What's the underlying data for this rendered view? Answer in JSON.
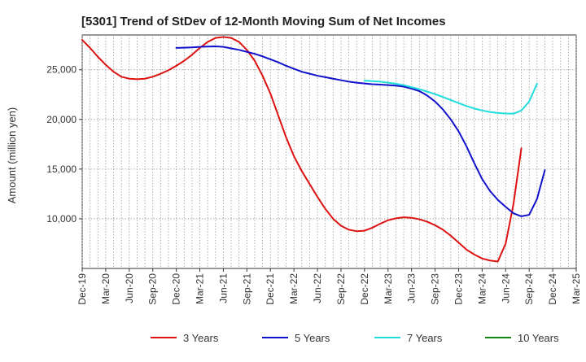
{
  "chart_data": {
    "type": "line",
    "title": "[5301]  Trend of StDev of 12-Month Moving Sum of Net Incomes",
    "xlabel": "",
    "ylabel": "Amount (million yen)",
    "x_tick_labels": [
      "Dec-19",
      "Mar-20",
      "Jun-20",
      "Sep-20",
      "Dec-20",
      "Mar-21",
      "Jun-21",
      "Sep-21",
      "Dec-21",
      "Mar-22",
      "Jun-22",
      "Sep-22",
      "Dec-22",
      "Mar-23",
      "Jun-23",
      "Sep-23",
      "Dec-23",
      "Mar-24",
      "Jun-24",
      "Sep-24",
      "Dec-24",
      "Mar-25"
    ],
    "y_ticks": [
      10000,
      15000,
      20000,
      25000
    ],
    "y_tick_labels": [
      "10,000",
      "15,000",
      "20,000",
      "25,000"
    ],
    "ylim": [
      5000,
      28500
    ],
    "grid": true,
    "legend_position": "bottom",
    "x_months": [
      "2019-12",
      "2020-01",
      "2020-02",
      "2020-03",
      "2020-04",
      "2020-05",
      "2020-06",
      "2020-07",
      "2020-08",
      "2020-09",
      "2020-10",
      "2020-11",
      "2020-12",
      "2021-01",
      "2021-02",
      "2021-03",
      "2021-04",
      "2021-05",
      "2021-06",
      "2021-07",
      "2021-08",
      "2021-09",
      "2021-10",
      "2021-11",
      "2021-12",
      "2022-01",
      "2022-02",
      "2022-03",
      "2022-04",
      "2022-05",
      "2022-06",
      "2022-07",
      "2022-08",
      "2022-09",
      "2022-10",
      "2022-11",
      "2022-12",
      "2023-01",
      "2023-02",
      "2023-03",
      "2023-04",
      "2023-05",
      "2023-06",
      "2023-07",
      "2023-08",
      "2023-09",
      "2023-10",
      "2023-11",
      "2023-12",
      "2024-01",
      "2024-02",
      "2024-03",
      "2024-04",
      "2024-05",
      "2024-06",
      "2024-07",
      "2024-08",
      "2024-09",
      "2024-10",
      "2024-11",
      "2024-12"
    ],
    "series": [
      {
        "name": "3 Years",
        "color": "#dd1111",
        "values": [
          28000,
          27200,
          26300,
          25500,
          24800,
          24300,
          24100,
          24050,
          24100,
          24300,
          24600,
          24950,
          25400,
          25900,
          26500,
          27200,
          27800,
          28200,
          28300,
          28200,
          27800,
          27000,
          25900,
          24400,
          22600,
          20400,
          18200,
          16300,
          14800,
          13500,
          12200,
          11000,
          10000,
          9300,
          8900,
          8750,
          8800,
          9100,
          9500,
          9850,
          10050,
          10150,
          10100,
          9950,
          9700,
          9350,
          8900,
          8300,
          7600,
          6900,
          6400,
          6000,
          5800,
          5700,
          7500,
          11500,
          17100,
          null,
          null,
          null,
          null
        ]
      },
      {
        "name": "5 Years",
        "color": "#1111cc",
        "values": [
          null,
          null,
          null,
          null,
          null,
          null,
          null,
          null,
          null,
          null,
          null,
          null,
          27200,
          27220,
          27250,
          27300,
          27330,
          27350,
          27300,
          27150,
          27000,
          26800,
          26600,
          26350,
          26050,
          25750,
          25400,
          25100,
          24800,
          24600,
          24400,
          24250,
          24100,
          23950,
          23800,
          23700,
          23620,
          23550,
          23500,
          23450,
          23400,
          23300,
          23100,
          22850,
          22400,
          21800,
          21000,
          20000,
          18800,
          17300,
          15600,
          14000,
          12800,
          11900,
          11200,
          10550,
          10250,
          10400,
          12000,
          14900,
          null
        ]
      },
      {
        "name": "7 Years",
        "color": "#22dddd",
        "values": [
          null,
          null,
          null,
          null,
          null,
          null,
          null,
          null,
          null,
          null,
          null,
          null,
          null,
          null,
          null,
          null,
          null,
          null,
          null,
          null,
          null,
          null,
          null,
          null,
          null,
          null,
          null,
          null,
          null,
          null,
          null,
          null,
          null,
          null,
          null,
          null,
          23900,
          23850,
          23800,
          23700,
          23600,
          23450,
          23250,
          23050,
          22800,
          22550,
          22250,
          21950,
          21650,
          21350,
          21100,
          20900,
          20750,
          20650,
          20600,
          20580,
          20900,
          21800,
          23600,
          null,
          null
        ]
      },
      {
        "name": "10 Years",
        "color": "#118811",
        "values": []
      }
    ]
  }
}
